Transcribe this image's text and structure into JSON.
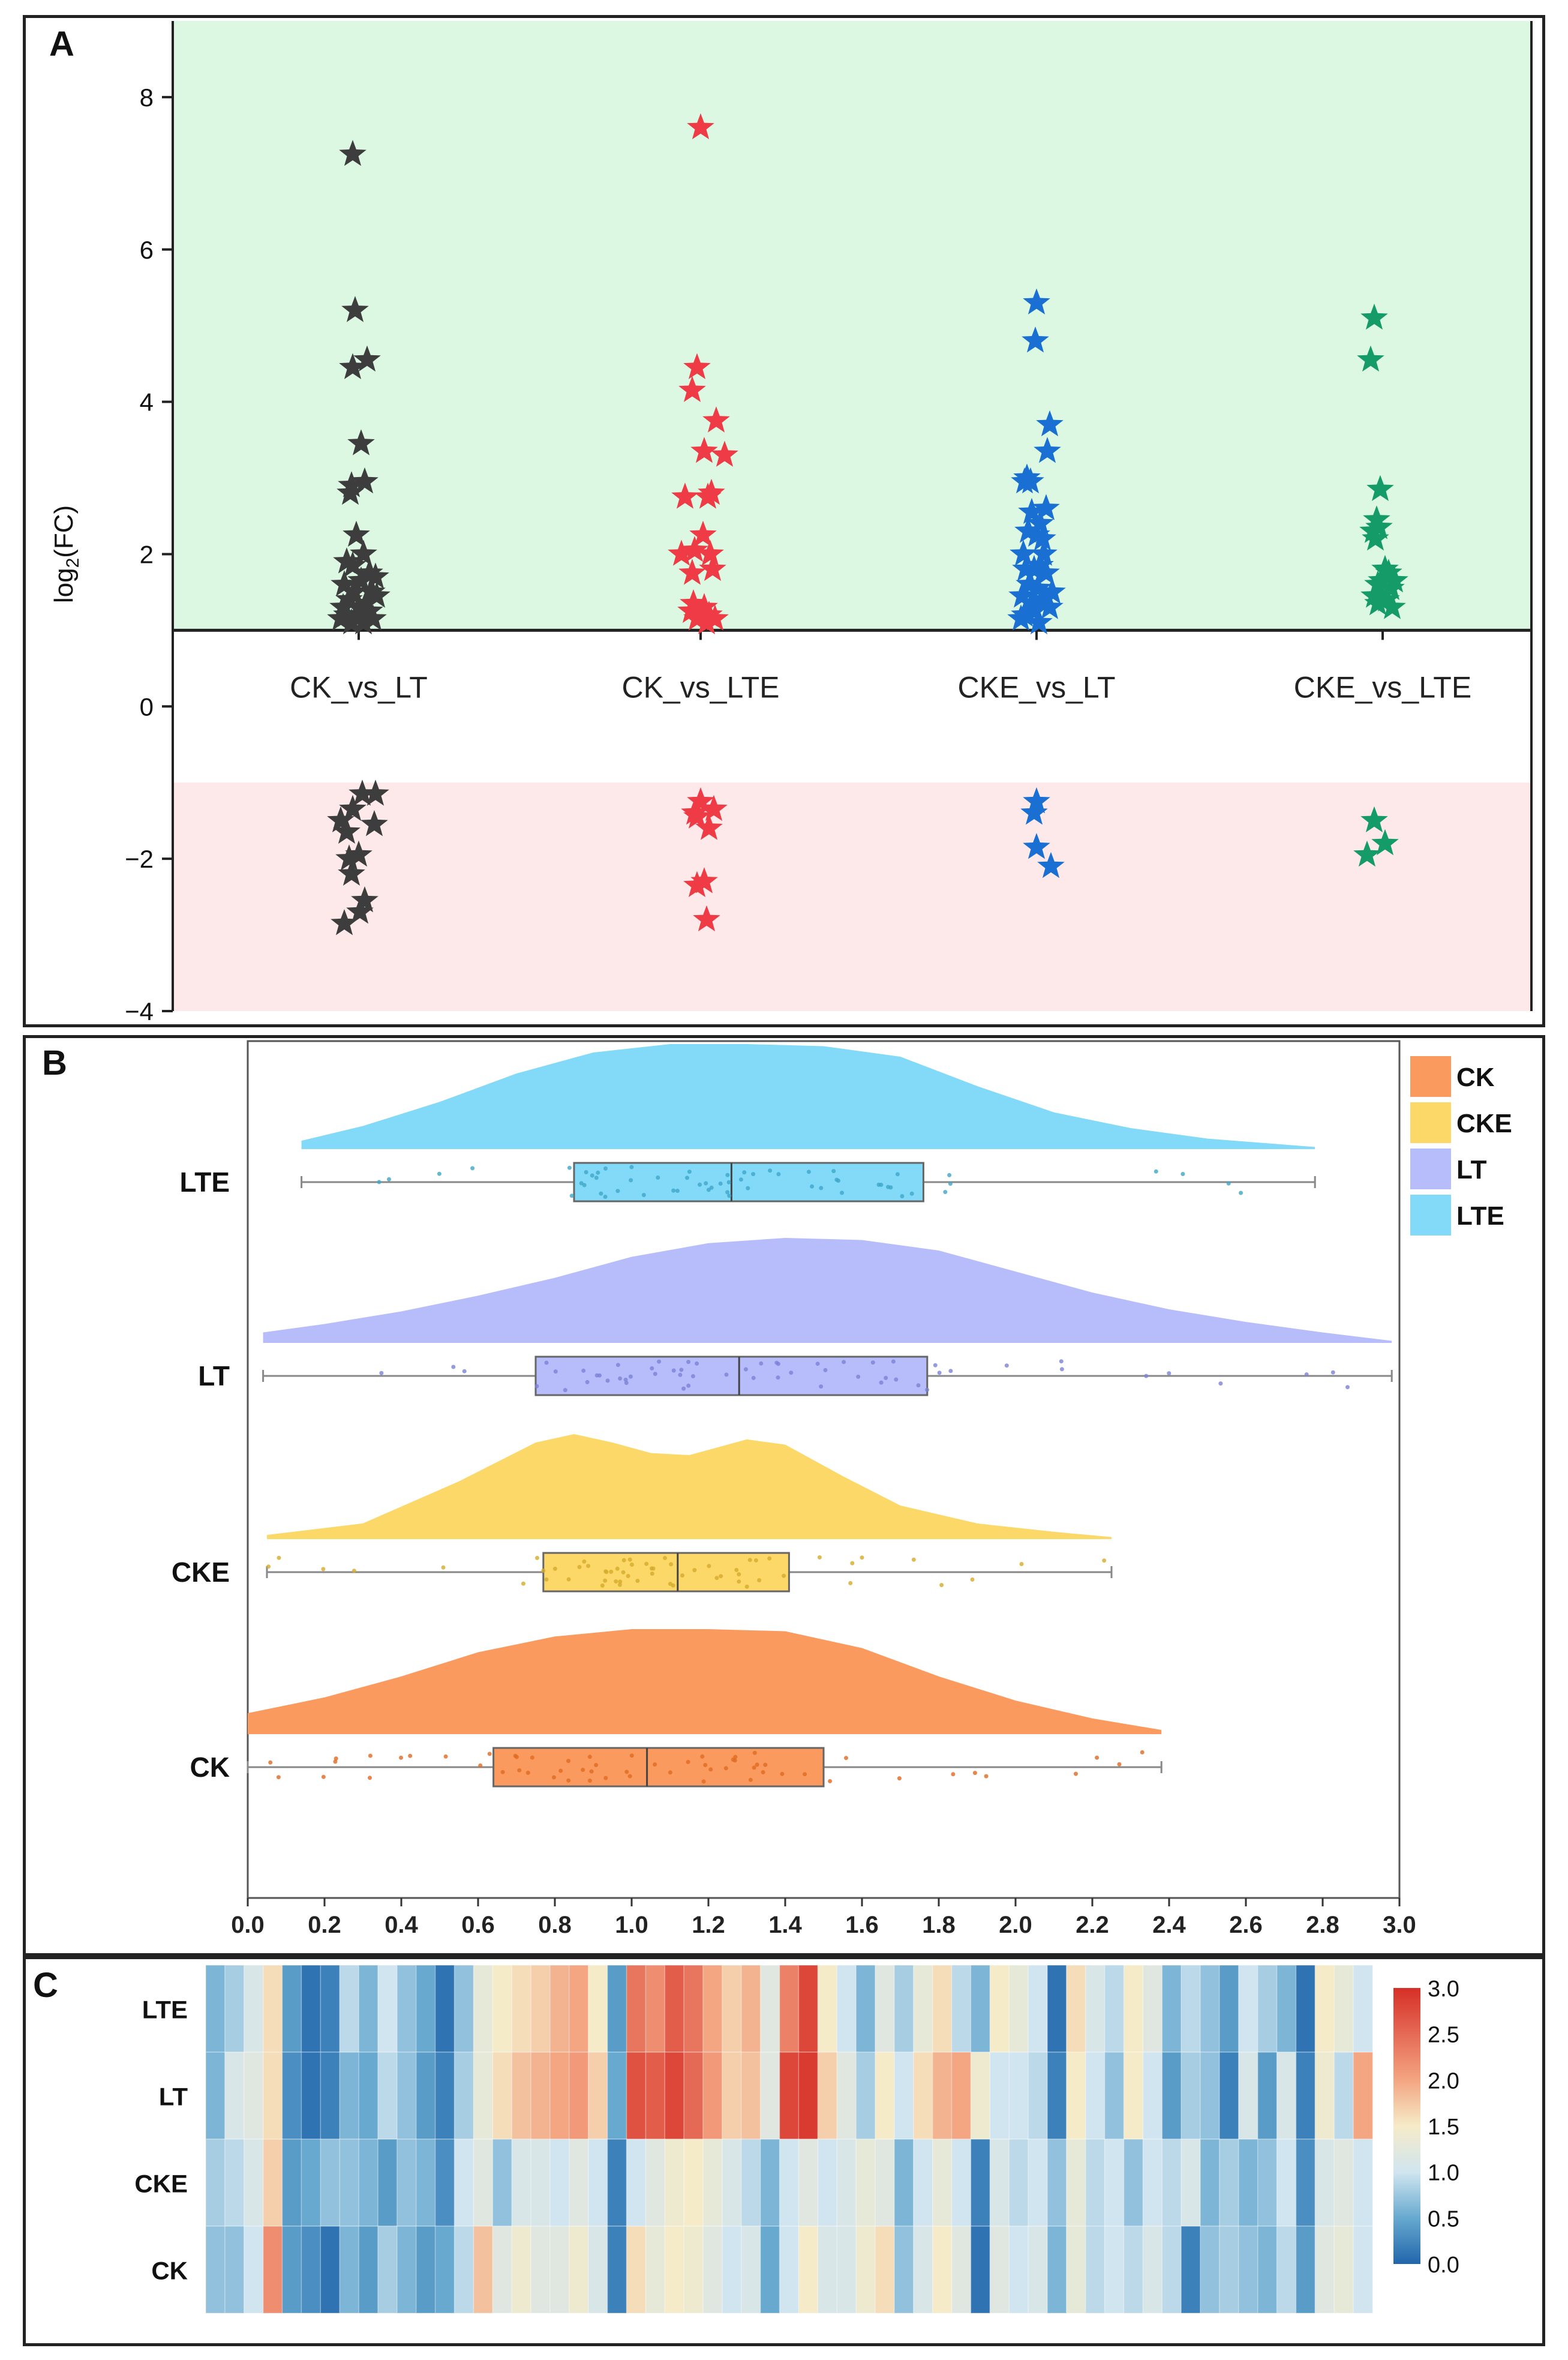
{
  "panels": {
    "a_label": "A",
    "b_label": "B",
    "c_label": "C"
  },
  "chart_data": [
    {
      "type": "scatter",
      "title": "",
      "xlabel": "",
      "ylabel_main": "log",
      "ylabel_sub": "2",
      "ylabel_tail": "(FC)",
      "categories": [
        "CK_vs_LT",
        "CK_vs_LTE",
        "CKE_vs_LT",
        "CKE_vs_LTE"
      ],
      "ylim": [
        -4,
        9
      ],
      "yticks": [
        -4,
        -2,
        0,
        2,
        4,
        6,
        8
      ],
      "up_threshold": 1,
      "down_threshold": -1,
      "region_colors": {
        "up": "#dcf8e3",
        "down": "#fde9ea"
      },
      "series": [
        {
          "category": "CK_vs_LT",
          "color": "#3d3d3d",
          "points": [
            [
              -0.05,
              7.25
            ],
            [
              -0.03,
              5.2
            ],
            [
              -0.05,
              4.45
            ],
            [
              0.07,
              4.55
            ],
            [
              0.02,
              3.45
            ],
            [
              -0.06,
              2.9
            ],
            [
              0.05,
              2.95
            ],
            [
              -0.07,
              2.8
            ],
            [
              -0.02,
              2.25
            ],
            [
              0.04,
              2.0
            ],
            [
              -0.1,
              1.9
            ],
            [
              -0.05,
              1.85
            ],
            [
              0.09,
              1.75
            ],
            [
              0.14,
              1.7
            ],
            [
              -0.12,
              1.6
            ],
            [
              0.02,
              1.65
            ],
            [
              0.11,
              1.5
            ],
            [
              -0.04,
              1.5
            ],
            [
              0.15,
              1.45
            ],
            [
              -0.08,
              1.4
            ],
            [
              0.06,
              1.35
            ],
            [
              -0.13,
              1.3
            ],
            [
              0.0,
              1.3
            ],
            [
              0.09,
              1.25
            ],
            [
              -0.1,
              1.2
            ],
            [
              -0.02,
              1.2
            ],
            [
              0.12,
              1.15
            ],
            [
              -0.15,
              1.15
            ],
            [
              0.04,
              1.1
            ],
            [
              -0.06,
              1.1
            ],
            [
              0.03,
              -1.15
            ],
            [
              0.14,
              -1.15
            ],
            [
              -0.05,
              -1.35
            ],
            [
              0.13,
              -1.55
            ],
            [
              -0.15,
              -1.5
            ],
            [
              -0.1,
              -1.65
            ],
            [
              0.0,
              -1.95
            ],
            [
              -0.08,
              -2.0
            ],
            [
              -0.06,
              -2.2
            ],
            [
              0.05,
              -2.55
            ],
            [
              0.01,
              -2.7
            ],
            [
              -0.12,
              -2.85
            ]
          ]
        },
        {
          "category": "CK_vs_LTE",
          "color": "#ee3b45",
          "points": [
            [
              0.0,
              7.6
            ],
            [
              -0.03,
              4.45
            ],
            [
              -0.07,
              4.15
            ],
            [
              0.13,
              3.75
            ],
            [
              0.03,
              3.35
            ],
            [
              0.2,
              3.3
            ],
            [
              0.09,
              2.8
            ],
            [
              0.06,
              2.75
            ],
            [
              -0.13,
              2.75
            ],
            [
              0.02,
              2.25
            ],
            [
              -0.05,
              2.05
            ],
            [
              -0.16,
              2.0
            ],
            [
              0.08,
              2.0
            ],
            [
              -0.07,
              1.75
            ],
            [
              0.1,
              1.8
            ],
            [
              -0.06,
              1.35
            ],
            [
              0.03,
              1.3
            ],
            [
              -0.08,
              1.25
            ],
            [
              0.07,
              1.2
            ],
            [
              -0.03,
              1.15
            ],
            [
              0.12,
              1.15
            ],
            [
              0.05,
              1.1
            ],
            [
              0.0,
              -1.25
            ],
            [
              0.11,
              -1.35
            ],
            [
              -0.05,
              -1.4
            ],
            [
              -0.03,
              -1.45
            ],
            [
              0.07,
              -1.6
            ],
            [
              0.03,
              -2.3
            ],
            [
              -0.03,
              -2.35
            ],
            [
              0.05,
              -2.8
            ]
          ]
        },
        {
          "category": "CKE_vs_LT",
          "color": "#1a6fd3",
          "points": [
            [
              0.0,
              5.3
            ],
            [
              -0.01,
              4.8
            ],
            [
              0.11,
              3.7
            ],
            [
              0.09,
              3.35
            ],
            [
              -0.08,
              3.0
            ],
            [
              -0.1,
              2.95
            ],
            [
              -0.05,
              2.95
            ],
            [
              0.08,
              2.6
            ],
            [
              -0.04,
              2.55
            ],
            [
              0.03,
              2.4
            ],
            [
              -0.07,
              2.3
            ],
            [
              0.05,
              2.2
            ],
            [
              0.0,
              2.25
            ],
            [
              -0.11,
              2.0
            ],
            [
              0.06,
              2.0
            ],
            [
              0.03,
              1.85
            ],
            [
              -0.09,
              1.8
            ],
            [
              -0.02,
              1.8
            ],
            [
              0.08,
              1.75
            ],
            [
              -0.06,
              1.6
            ],
            [
              0.01,
              1.55
            ],
            [
              0.13,
              1.5
            ],
            [
              -0.12,
              1.45
            ],
            [
              0.06,
              1.4
            ],
            [
              -0.04,
              1.35
            ],
            [
              0.11,
              1.3
            ],
            [
              -0.1,
              1.2
            ],
            [
              -0.02,
              1.25
            ],
            [
              -0.13,
              1.15
            ],
            [
              0.02,
              1.1
            ],
            [
              0.0,
              -1.25
            ],
            [
              -0.02,
              -1.4
            ],
            [
              0.0,
              -1.85
            ],
            [
              0.12,
              -2.1
            ]
          ]
        },
        {
          "category": "CKE_vs_LTE",
          "color": "#159b68",
          "points": [
            [
              -0.07,
              5.1
            ],
            [
              -0.1,
              4.55
            ],
            [
              -0.02,
              2.85
            ],
            [
              -0.05,
              2.45
            ],
            [
              -0.08,
              2.3
            ],
            [
              -0.03,
              2.35
            ],
            [
              -0.06,
              2.2
            ],
            [
              0.02,
              1.8
            ],
            [
              0.05,
              1.75
            ],
            [
              -0.01,
              1.65
            ],
            [
              0.1,
              1.65
            ],
            [
              -0.04,
              1.6
            ],
            [
              0.07,
              1.55
            ],
            [
              -0.07,
              1.45
            ],
            [
              0.03,
              1.4
            ],
            [
              -0.04,
              1.35
            ],
            [
              0.08,
              1.3
            ],
            [
              -0.07,
              -1.5
            ],
            [
              0.02,
              -1.8
            ],
            [
              -0.13,
              -1.95
            ]
          ]
        }
      ]
    },
    {
      "type": "raincloud",
      "title": "",
      "xlabel": "",
      "ylabel": "",
      "xlim": [
        0,
        3
      ],
      "xticks": [
        "0.0",
        "0.2",
        "0.4",
        "0.6",
        "0.8",
        "1.0",
        "1.2",
        "1.4",
        "1.6",
        "1.8",
        "2.0",
        "2.2",
        "2.4",
        "2.6",
        "2.8",
        "3.0"
      ],
      "legend": [
        {
          "name": "CK",
          "color": "#fb9a5e"
        },
        {
          "name": "CKE",
          "color": "#fcd869"
        },
        {
          "name": "LT",
          "color": "#b7bdfb"
        },
        {
          "name": "LTE",
          "color": "#82d9f8"
        }
      ],
      "legend_position": "top-right",
      "groups": [
        {
          "name": "LTE",
          "color": "#82d9f8",
          "dot_color": "#3fa6c8",
          "min": 0.14,
          "q1": 0.85,
          "median": 1.26,
          "q3": 1.76,
          "max": 2.78,
          "density": [
            [
              0.14,
              0.08
            ],
            [
              0.3,
              0.22
            ],
            [
              0.5,
              0.45
            ],
            [
              0.7,
              0.72
            ],
            [
              0.9,
              0.92
            ],
            [
              1.1,
              1.0
            ],
            [
              1.3,
              1.0
            ],
            [
              1.5,
              0.98
            ],
            [
              1.7,
              0.88
            ],
            [
              1.9,
              0.6
            ],
            [
              2.1,
              0.35
            ],
            [
              2.3,
              0.2
            ],
            [
              2.5,
              0.1
            ],
            [
              2.78,
              0.02
            ]
          ]
        },
        {
          "name": "LT",
          "color": "#b7bdfb",
          "dot_color": "#7a82d6",
          "min": 0.04,
          "q1": 0.75,
          "median": 1.28,
          "q3": 1.77,
          "max": 2.98,
          "density": [
            [
              0.04,
              0.1
            ],
            [
              0.2,
              0.18
            ],
            [
              0.4,
              0.3
            ],
            [
              0.6,
              0.45
            ],
            [
              0.8,
              0.62
            ],
            [
              1.0,
              0.82
            ],
            [
              1.2,
              0.95
            ],
            [
              1.4,
              1.0
            ],
            [
              1.6,
              0.98
            ],
            [
              1.8,
              0.88
            ],
            [
              2.0,
              0.68
            ],
            [
              2.2,
              0.48
            ],
            [
              2.4,
              0.32
            ],
            [
              2.6,
              0.2
            ],
            [
              2.8,
              0.1
            ],
            [
              2.98,
              0.02
            ]
          ]
        },
        {
          "name": "CKE",
          "color": "#fcd869",
          "dot_color": "#d4ab2a",
          "min": 0.05,
          "q1": 0.77,
          "median": 1.12,
          "q3": 1.41,
          "max": 2.25,
          "density": [
            [
              0.05,
              0.04
            ],
            [
              0.3,
              0.15
            ],
            [
              0.55,
              0.55
            ],
            [
              0.75,
              0.92
            ],
            [
              0.85,
              1.0
            ],
            [
              0.95,
              0.92
            ],
            [
              1.05,
              0.82
            ],
            [
              1.15,
              0.8
            ],
            [
              1.3,
              0.95
            ],
            [
              1.4,
              0.9
            ],
            [
              1.55,
              0.6
            ],
            [
              1.7,
              0.32
            ],
            [
              1.9,
              0.15
            ],
            [
              2.1,
              0.07
            ],
            [
              2.25,
              0.02
            ]
          ]
        },
        {
          "name": "CK",
          "color": "#fb9a5e",
          "dot_color": "#e06a20",
          "min": 0.0,
          "q1": 0.64,
          "median": 1.04,
          "q3": 1.5,
          "max": 2.38,
          "density": [
            [
              0.0,
              0.2
            ],
            [
              0.2,
              0.35
            ],
            [
              0.4,
              0.55
            ],
            [
              0.6,
              0.78
            ],
            [
              0.8,
              0.93
            ],
            [
              1.0,
              1.0
            ],
            [
              1.2,
              1.0
            ],
            [
              1.4,
              0.98
            ],
            [
              1.6,
              0.82
            ],
            [
              1.8,
              0.55
            ],
            [
              2.0,
              0.32
            ],
            [
              2.2,
              0.15
            ],
            [
              2.38,
              0.04
            ]
          ]
        }
      ]
    },
    {
      "type": "heatmap",
      "title": "",
      "rows": [
        "LTE",
        "LT",
        "CKE",
        "CK"
      ],
      "colorbar_ticks": [
        "3.0",
        "2.5",
        "2.0",
        "1.5",
        "1.0",
        "0.5",
        "0.0"
      ],
      "vmin": 0,
      "vmax": 3,
      "values": [
        [
          0.6,
          0.8,
          1.1,
          1.6,
          0.4,
          0.1,
          0.2,
          0.9,
          0.6,
          1.0,
          0.7,
          0.5,
          0.1,
          0.7,
          1.3,
          1.5,
          1.6,
          1.7,
          1.9,
          2.0,
          1.5,
          0.4,
          2.4,
          2.2,
          2.6,
          2.4,
          2.0,
          1.7,
          1.9,
          1.2,
          2.3,
          2.8,
          1.5,
          1.0,
          0.6,
          1.2,
          0.8,
          1.3,
          1.6,
          0.9,
          0.6,
          1.5,
          1.3,
          1.0,
          0.1,
          1.6,
          1.1,
          0.9,
          1.5,
          1.2,
          0.6,
          0.9,
          0.7,
          0.4,
          1.0,
          0.8,
          0.6,
          0.1,
          1.5,
          1.3,
          1.0
        ],
        [
          0.6,
          1.1,
          1.2,
          1.6,
          0.3,
          0.1,
          0.2,
          0.6,
          0.5,
          0.9,
          0.7,
          0.4,
          0.2,
          0.8,
          1.3,
          1.6,
          1.8,
          1.9,
          2.0,
          2.1,
          1.7,
          0.5,
          2.7,
          2.6,
          2.8,
          2.5,
          2.1,
          1.7,
          1.8,
          1.2,
          2.8,
          2.9,
          1.7,
          1.2,
          0.8,
          1.5,
          1.0,
          1.6,
          1.9,
          2.0,
          1.4,
          1.0,
          1.0,
          0.9,
          0.2,
          1.5,
          1.0,
          0.7,
          1.5,
          1.0,
          0.4,
          0.8,
          0.7,
          0.2,
          1.1,
          0.4,
          1.1,
          0.2,
          1.4,
          0.9,
          2.0
        ],
        [
          0.8,
          0.9,
          1.1,
          1.7,
          0.4,
          0.5,
          0.7,
          0.7,
          0.6,
          0.4,
          0.7,
          0.6,
          0.3,
          1.0,
          1.2,
          0.7,
          1.1,
          1.1,
          1.0,
          1.2,
          1.0,
          0.2,
          1.0,
          1.2,
          1.4,
          1.5,
          1.3,
          1.1,
          0.9,
          0.6,
          1.0,
          1.2,
          1.0,
          1.1,
          1.3,
          1.2,
          0.6,
          1.0,
          1.3,
          1.0,
          0.2,
          1.1,
          0.9,
          1.0,
          0.7,
          1.3,
          0.9,
          1.0,
          0.7,
          1.0,
          0.9,
          1.1,
          0.6,
          0.8,
          0.6,
          0.7,
          1.0,
          0.3,
          1.1,
          1.2,
          1.0
        ],
        [
          0.7,
          0.7,
          1.0,
          2.2,
          0.4,
          0.3,
          0.1,
          0.6,
          0.4,
          0.8,
          0.6,
          0.4,
          0.5,
          0.9,
          1.8,
          1.2,
          1.4,
          1.2,
          1.2,
          1.4,
          1.1,
          0.2,
          1.6,
          1.3,
          1.5,
          1.4,
          1.2,
          1.0,
          1.1,
          0.5,
          1.0,
          1.5,
          1.1,
          1.1,
          1.4,
          1.6,
          0.7,
          1.1,
          1.5,
          1.2,
          0.1,
          1.2,
          1.0,
          1.1,
          0.6,
          1.3,
          0.9,
          1.0,
          0.9,
          1.1,
          0.9,
          0.2,
          0.7,
          0.8,
          0.7,
          0.6,
          0.9,
          0.4,
          1.2,
          1.3,
          1.0
        ]
      ]
    }
  ]
}
